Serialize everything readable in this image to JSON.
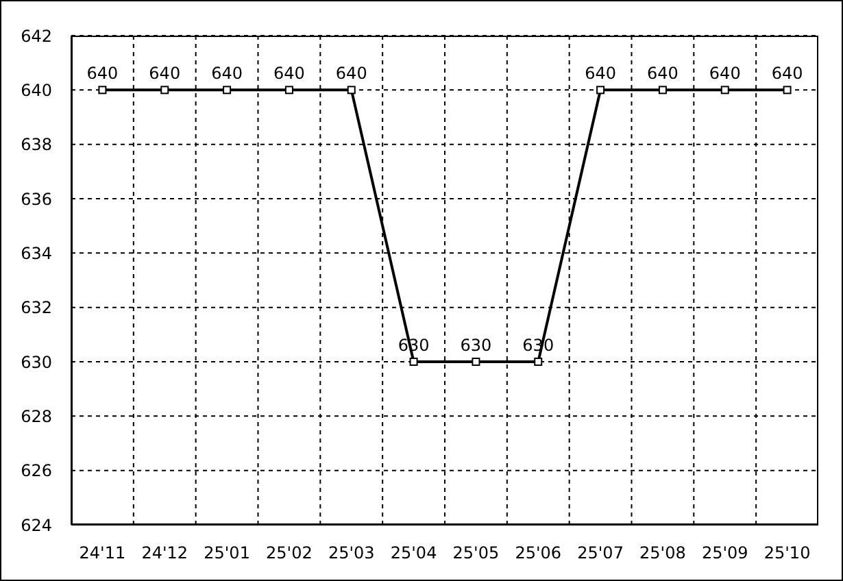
{
  "chart_data": {
    "type": "line",
    "categories": [
      "24'11",
      "24'12",
      "25'01",
      "25'02",
      "25'03",
      "25'04",
      "25'05",
      "25'06",
      "25'07",
      "25'08",
      "25'09",
      "25'10"
    ],
    "values": [
      640,
      640,
      640,
      640,
      640,
      630,
      630,
      630,
      640,
      640,
      640,
      640
    ],
    "color": "#000000",
    "ylim": [
      624,
      642
    ],
    "yticks": [
      624,
      626,
      628,
      630,
      632,
      634,
      636,
      638,
      640,
      642
    ],
    "grid": true,
    "data_labels": true,
    "marker": "square",
    "line_style": "solid"
  }
}
